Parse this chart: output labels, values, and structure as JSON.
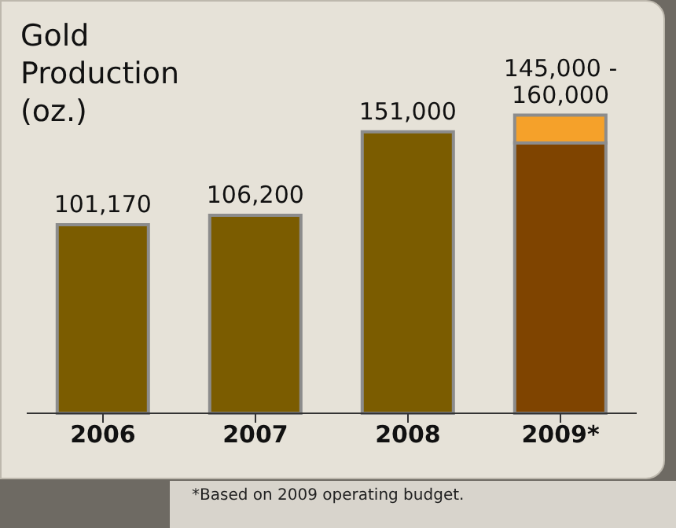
{
  "chart_data": {
    "type": "bar",
    "title": "Gold Production (oz.)",
    "categories": [
      "2006",
      "2007",
      "2008",
      "2009*"
    ],
    "stacked": true,
    "series": [
      {
        "color": "#7b5c00",
        "colors": [
          "#7b5c00",
          "#7b5c00",
          "#7b5c00",
          "#7f4400"
        ],
        "values": [
          101170,
          106200,
          151000,
          145000
        ],
        "value_labels": [
          "101,170",
          "106,200",
          "151,000",
          null
        ]
      },
      {
        "color": "#f5a12a",
        "values": [
          null,
          null,
          null,
          15000
        ]
      }
    ],
    "annotations": [
      {
        "text": "145,000 - 160,000",
        "x": "2009*",
        "y": 160000
      },
      "*Based on 2009 operating budget."
    ]
  }
}
